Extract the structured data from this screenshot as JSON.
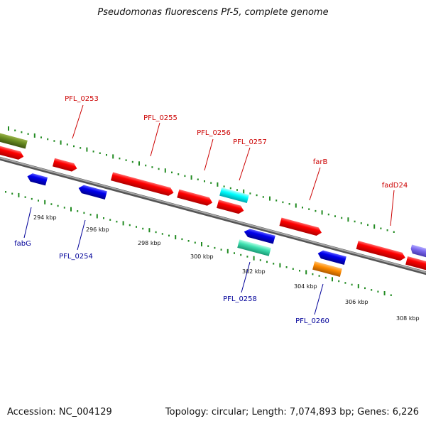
{
  "title": "Pseudomonas fluorescens Pf-5, complete genome",
  "footer": {
    "accession": "Accession: NC_004129",
    "summary": "Topology: circular; Length: 7,074,893 bp; Genes: 6,226"
  },
  "scale_labels": [
    "294 kbp",
    "296 kbp",
    "298 kbp",
    "300 kbp",
    "302 kbp",
    "304 kbp",
    "306 kbp",
    "308 kbp"
  ],
  "forward_genes": [
    "PFL_0253",
    "PFL_0255",
    "PFL_0256",
    "PFL_0257",
    "farB",
    "fadD24"
  ],
  "reverse_genes": [
    "fabG",
    "PFL_0254",
    "PFL_0258",
    "PFL_0260"
  ],
  "colors": {
    "forward": "#ff0000",
    "reverse": "#0000ee",
    "label_forward": "#cc0000",
    "label_reverse": "#000099",
    "backbone": "#8a8a8a",
    "ticks": "#228b22",
    "olive": "#6b8e23",
    "cyan": "#00ffff",
    "teal": "#3fe0b0",
    "orange": "#ff8c00",
    "violet": "#7b68ee"
  }
}
